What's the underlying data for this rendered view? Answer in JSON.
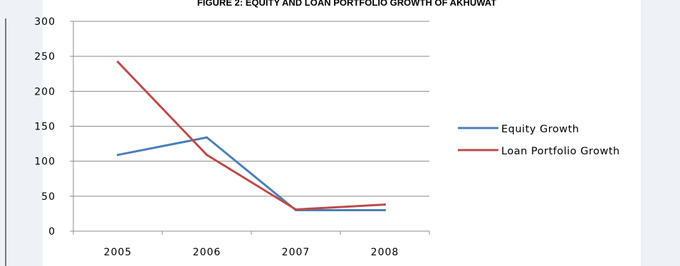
{
  "chart_data": {
    "type": "line",
    "title": "FIGURE 2: EQUITY AND LOAN PORTFOLIO GROWTH OF AKHUWAT",
    "xlabel": "",
    "ylabel": "",
    "categories": [
      "2005",
      "2006",
      "2007",
      "2008"
    ],
    "y_ticks": [
      "0",
      "50",
      "100",
      "150",
      "200",
      "250",
      "300"
    ],
    "ylim": [
      0,
      300
    ],
    "grid": true,
    "legend_position": "right",
    "series": [
      {
        "name": "Equity Growth",
        "values": [
          109,
          134,
          30,
          30
        ],
        "color": "#4a7ebb"
      },
      {
        "name": "Loan Portfolio Growth",
        "values": [
          242,
          109,
          31,
          38
        ],
        "color": "#be4b48"
      }
    ]
  }
}
